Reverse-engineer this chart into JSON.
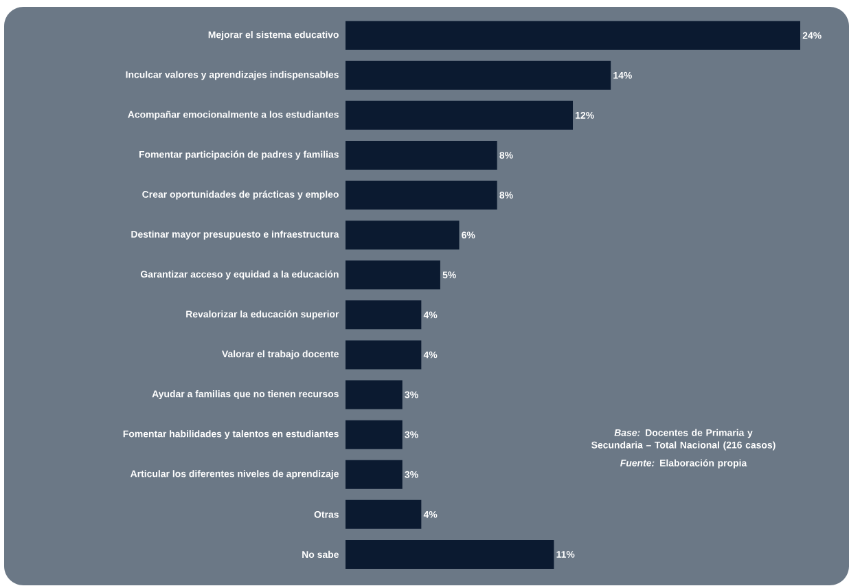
{
  "chart_data": {
    "type": "bar",
    "orientation": "horizontal",
    "color": "#0b1a30",
    "categories": [
      "Mejorar el sistema educativo",
      "Inculcar valores y aprendizajes indispensables",
      "Acompañar emocionalmente a los estudiantes",
      "Fomentar participación de padres y familias",
      "Crear oportunidades de prácticas y empleo",
      "Destinar mayor presupuesto e infraestructura",
      "Garantizar acceso y equidad a la educación",
      "Revalorizar la educación superior",
      "Valorar el trabajo docente",
      "Ayudar a familias que no tienen recursos",
      "Fomentar habilidades y talentos en estudiantes",
      "Articular los diferentes niveles de aprendizaje",
      "Otras",
      "No sabe"
    ],
    "values": [
      24,
      14,
      12,
      8,
      8,
      6,
      5,
      4,
      4,
      3,
      3,
      3,
      4,
      11
    ],
    "value_labels": [
      "24%",
      "14%",
      "12%",
      "8%",
      "8%",
      "6%",
      "5%",
      "4%",
      "4%",
      "3%",
      "3%",
      "3%",
      "4%",
      "11%"
    ],
    "annotations": [
      "*Base:* Docentes de Primaria y Secundaria – Total Nacional (216 casos)",
      "*Fuente:* Elaboración propia"
    ]
  }
}
